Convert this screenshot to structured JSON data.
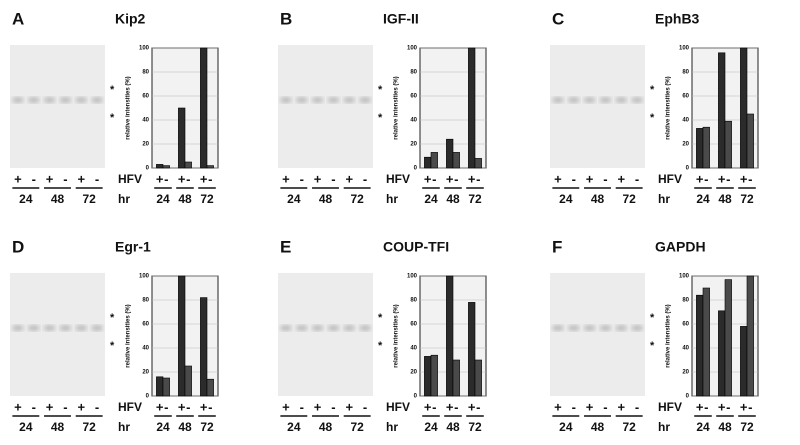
{
  "chart_data": [
    {
      "type": "bar",
      "panel": "A",
      "title": "Kip2",
      "y_label": "relative intensities (%)",
      "annotations": [
        "*",
        "*"
      ],
      "group_label": "HFV",
      "x_label": "hr",
      "categories": [
        "24",
        "48",
        "72"
      ],
      "series": [
        {
          "name": "+",
          "color": "#2b2b2b",
          "values": [
            3,
            50,
            100
          ]
        },
        {
          "name": "-",
          "color": "#4a4a4a",
          "values": [
            2,
            5,
            2
          ]
        }
      ],
      "ylim": [
        0,
        100
      ],
      "yticks": [
        0,
        20,
        40,
        60,
        80,
        100
      ],
      "grid": true
    },
    {
      "type": "bar",
      "panel": "B",
      "title": "IGF-II",
      "y_label": "relative intensities (%)",
      "annotations": [
        "*",
        "*"
      ],
      "group_label": "HFV",
      "x_label": "hr",
      "categories": [
        "24",
        "48",
        "72"
      ],
      "series": [
        {
          "name": "+",
          "color": "#2b2b2b",
          "values": [
            9,
            24,
            100
          ]
        },
        {
          "name": "-",
          "color": "#4a4a4a",
          "values": [
            13,
            13,
            8
          ]
        }
      ],
      "ylim": [
        0,
        100
      ],
      "yticks": [
        0,
        20,
        40,
        60,
        80,
        100
      ],
      "grid": true
    },
    {
      "type": "bar",
      "panel": "C",
      "title": "EphB3",
      "y_label": "relative intensities (%)",
      "annotations": [
        "*",
        "*"
      ],
      "group_label": "HFV",
      "x_label": "hr",
      "categories": [
        "24",
        "48",
        "72"
      ],
      "series": [
        {
          "name": "+",
          "color": "#2b2b2b",
          "values": [
            33,
            96,
            100
          ]
        },
        {
          "name": "-",
          "color": "#4a4a4a",
          "values": [
            34,
            39,
            45
          ]
        }
      ],
      "ylim": [
        0,
        100
      ],
      "yticks": [
        0,
        20,
        40,
        60,
        80,
        100
      ],
      "grid": true
    },
    {
      "type": "bar",
      "panel": "D",
      "title": "Egr-1",
      "y_label": "relative intensities (%)",
      "annotations": [
        "*",
        "*"
      ],
      "group_label": "HFV",
      "x_label": "hr",
      "categories": [
        "24",
        "48",
        "72"
      ],
      "series": [
        {
          "name": "+",
          "color": "#2b2b2b",
          "values": [
            16,
            100,
            82
          ]
        },
        {
          "name": "-",
          "color": "#4a4a4a",
          "values": [
            15,
            25,
            14
          ]
        }
      ],
      "ylim": [
        0,
        100
      ],
      "yticks": [
        0,
        20,
        40,
        60,
        80,
        100
      ],
      "grid": true
    },
    {
      "type": "bar",
      "panel": "E",
      "title": "COUP-TFI",
      "y_label": "relative intensities (%)",
      "annotations": [
        "*",
        "*"
      ],
      "group_label": "HFV",
      "x_label": "hr",
      "categories": [
        "24",
        "48",
        "72"
      ],
      "series": [
        {
          "name": "+",
          "color": "#2b2b2b",
          "values": [
            33,
            100,
            78
          ]
        },
        {
          "name": "-",
          "color": "#4a4a4a",
          "values": [
            34,
            30,
            30
          ]
        }
      ],
      "ylim": [
        0,
        100
      ],
      "yticks": [
        0,
        20,
        40,
        60,
        80,
        100
      ],
      "grid": true
    },
    {
      "type": "bar",
      "panel": "F",
      "title": "GAPDH",
      "y_label": "relative intensities (%)",
      "annotations": [
        "*",
        "*"
      ],
      "group_label": "HFV",
      "x_label": "hr",
      "categories": [
        "24",
        "48",
        "72"
      ],
      "series": [
        {
          "name": "+",
          "color": "#2b2b2b",
          "values": [
            84,
            71,
            58
          ]
        },
        {
          "name": "-",
          "color": "#4a4a4a",
          "values": [
            90,
            97,
            100
          ]
        }
      ],
      "ylim": [
        0,
        100
      ],
      "yticks": [
        0,
        20,
        40,
        60,
        80,
        100
      ],
      "grid": true
    }
  ]
}
